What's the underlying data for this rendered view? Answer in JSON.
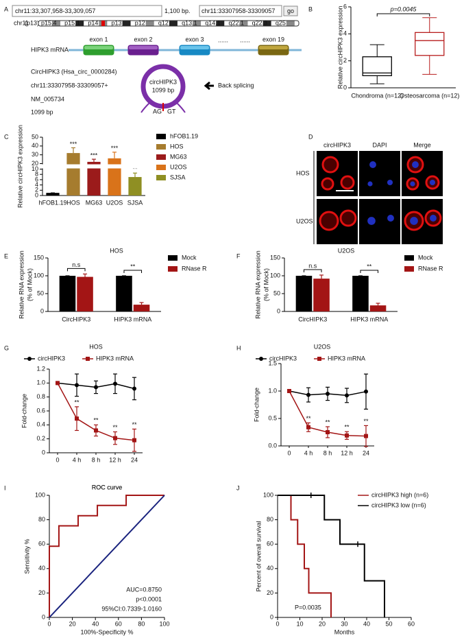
{
  "panel_labels": [
    "A",
    "B",
    "C",
    "D",
    "E",
    "F",
    "G",
    "H",
    "I",
    "J"
  ],
  "panel_a": {
    "locus": "chr11:33,307,958-33,309,057",
    "length": "1,100 bp.",
    "search": "chr11:33307958-33309057",
    "button": "go",
    "chromosome": "chr11",
    "band": "(p13)",
    "ideogram_bands": [
      "p15.4",
      "p15.1",
      "p14",
      "p13",
      "p12",
      "q12",
      "q13.1",
      "q14.1",
      "q22.1",
      "q22.3",
      "q25"
    ],
    "mrna_label": "HIPK3 mRNA",
    "exons": [
      "exon 1",
      "exon 2",
      "exon 3",
      "exon 19"
    ],
    "gap_marks": [
      "......",
      "......"
    ],
    "circ_info": [
      "CircHIPK3 (Hsa_circ_0000284)",
      "chr11:33307958-33309057+",
      "NM_005734",
      "1099 bp"
    ],
    "circle_name": "circHIPK3",
    "circle_length": "1099 bp",
    "back_splicing": "Back splicing",
    "acceptor": "AG",
    "donor": "GT"
  },
  "panel_d": {
    "channels": [
      "circHIPK3",
      "DAPI",
      "Merge"
    ],
    "cell_lines": [
      "HOS",
      "U2OS"
    ]
  },
  "chart_data": [
    {
      "type": "box",
      "y_label": "Relative circHIPK3 expression",
      "categories": [
        "Chondroma (n=12)",
        "Osteosarcoma (n=12)"
      ],
      "colors": [
        "#000000",
        "#b71c1c"
      ],
      "values": [
        {
          "min": 0.3,
          "q1": 0.9,
          "median": 1.1,
          "q3": 2.3,
          "max": 3.2
        },
        {
          "min": 1.0,
          "q1": 2.4,
          "median": 3.5,
          "q3": 4.1,
          "max": 5.2
        }
      ],
      "ylim": [
        0,
        6
      ],
      "yticks": [
        0,
        2,
        4,
        6
      ],
      "p_label": "p=0.0045"
    },
    {
      "type": "bar",
      "y_label": "Relative circHIPK3 expression",
      "categories": [
        "hFOB1.19",
        "HOS",
        "MG63",
        "U2OS",
        "SJSA"
      ],
      "colors": [
        "#000000",
        "#a67c2e",
        "#9b1b1b",
        "#d9731a",
        "#8f8f23"
      ],
      "values": [
        1,
        32,
        22,
        26,
        7
      ],
      "errors": [
        0,
        6,
        3,
        7,
        1.5
      ],
      "significance": [
        null,
        "***",
        "***",
        "***",
        "**"
      ],
      "ylim": [
        0,
        50
      ],
      "y_break": [
        10,
        20
      ],
      "yticks": [
        0,
        2,
        4,
        6,
        8,
        10,
        20,
        30,
        40,
        50
      ]
    },
    {
      "type": "grouped_bar",
      "title": "HOS",
      "y_label": [
        "Relative RNA expression",
        "(% of Mock)"
      ],
      "categories": [
        "CircHIPK3",
        "HIPK3 mRNA"
      ],
      "series": [
        {
          "name": "Mock",
          "color": "#000000",
          "values": [
            100,
            100
          ],
          "errors": [
            0,
            0
          ]
        },
        {
          "name": "RNase R",
          "color": "#a31515",
          "values": [
            97,
            19
          ],
          "errors": [
            8,
            6
          ]
        }
      ],
      "significance": [
        "n.s",
        "**"
      ],
      "ylim": [
        0,
        150
      ],
      "yticks": [
        0,
        50,
        100,
        150
      ]
    },
    {
      "type": "grouped_bar",
      "title": "U2OS",
      "y_label": [
        "Relative RNA expression",
        "(% of Mock)"
      ],
      "categories": [
        "CircHIPK3",
        "HIPK3 mRNA"
      ],
      "series": [
        {
          "name": "Mock",
          "color": "#000000",
          "values": [
            100,
            100
          ],
          "errors": [
            0,
            0
          ]
        },
        {
          "name": "RNase R",
          "color": "#a31515",
          "values": [
            92,
            17
          ],
          "errors": [
            10,
            6
          ]
        }
      ],
      "significance": [
        "n.s",
        "**"
      ],
      "ylim": [
        0,
        150
      ],
      "yticks": [
        0,
        50,
        100,
        150
      ]
    },
    {
      "type": "line",
      "title": "HOS",
      "y_label": "Fold-change",
      "categories": [
        "0",
        "4 h",
        "8 h",
        "12 h",
        "24"
      ],
      "series": [
        {
          "name": "circHIPK3",
          "color": "#000000",
          "marker": "circle",
          "values": [
            1,
            0.97,
            0.94,
            0.99,
            0.92
          ],
          "errors": [
            0,
            0.16,
            0.09,
            0.14,
            0.16
          ]
        },
        {
          "name": "HIPK3 mRNA",
          "color": "#a31515",
          "marker": "square",
          "values": [
            1,
            0.49,
            0.32,
            0.21,
            0.18
          ],
          "errors": [
            0,
            0.17,
            0.08,
            0.09,
            0.16
          ],
          "significance": [
            null,
            "**",
            "**",
            "**",
            "**"
          ]
        }
      ],
      "ylim": [
        0,
        1.2
      ],
      "yticks": [
        0,
        0.2,
        0.4,
        0.6,
        0.8,
        {
          "value": 1,
          "label": "1.0"
        },
        1.2
      ]
    },
    {
      "type": "line",
      "title": "U2OS",
      "y_label": "Fold-change",
      "categories": [
        "0",
        "4 h",
        "8 h",
        "12 h",
        "24"
      ],
      "series": [
        {
          "name": "circHIPK3",
          "color": "#000000",
          "marker": "circle",
          "values": [
            1,
            0.93,
            0.95,
            0.92,
            0.99
          ],
          "errors": [
            0,
            0.13,
            0.12,
            0.13,
            0.32
          ]
        },
        {
          "name": "HIPK3 mRNA",
          "color": "#a31515",
          "marker": "square",
          "values": [
            1,
            0.34,
            0.25,
            0.19,
            0.18
          ],
          "errors": [
            0,
            0.08,
            0.1,
            0.07,
            0.19
          ],
          "significance": [
            null,
            "**",
            "**",
            "**",
            "**"
          ]
        }
      ],
      "ylim": [
        0,
        1.5
      ],
      "yticks": [
        {
          "value": 0,
          "label": "0.0"
        },
        0.5,
        {
          "value": 1,
          "label": "1.0"
        },
        1.5
      ]
    },
    {
      "type": "step",
      "title": "ROC curve",
      "x_label": "100%-Specificity %",
      "y_label": "Sensitivity %",
      "series": [
        {
          "color": "#a31515",
          "step": true,
          "x": [
            0,
            0,
            8.3,
            25,
            41.7,
            66.7,
            100
          ],
          "y": [
            0,
            58.3,
            75,
            83.3,
            91.7,
            100,
            100
          ]
        },
        {
          "color": "#1a237e",
          "step": false,
          "x": [
            0,
            100
          ],
          "y": [
            0,
            100
          ]
        }
      ],
      "annotations": [
        "AUC=0.8750",
        "p<0.0001",
        "95%CI:0.7339-1.0160"
      ],
      "xlim": [
        0,
        100
      ],
      "ylim": [
        0,
        100
      ],
      "xticks": [
        0,
        20,
        40,
        60,
        80,
        100
      ],
      "yticks": [
        0,
        20,
        40,
        60,
        80,
        100
      ]
    },
    {
      "type": "step",
      "x_label": "Months",
      "y_label": "Percent of overall survival",
      "series": [
        {
          "name": "circHIPK3 high (n=6)",
          "color": "#a31515",
          "step": true,
          "x": [
            0,
            6,
            9,
            12,
            14,
            24
          ],
          "y": [
            100,
            80,
            60,
            40,
            20,
            0
          ]
        },
        {
          "name": "circHIPK3 low (n=6)",
          "color": "#000000",
          "step": true,
          "x": [
            0,
            21,
            28,
            39,
            48
          ],
          "y": [
            100,
            80,
            60,
            30,
            0
          ],
          "censored_x": [
            15,
            36
          ]
        }
      ],
      "annotations": [
        "P=0.0035"
      ],
      "xlim": [
        0,
        60
      ],
      "ylim": [
        0,
        100
      ],
      "xticks": [
        0,
        10,
        20,
        30,
        40,
        50,
        60
      ],
      "yticks": [
        0,
        20,
        40,
        60,
        80,
        100
      ]
    }
  ]
}
